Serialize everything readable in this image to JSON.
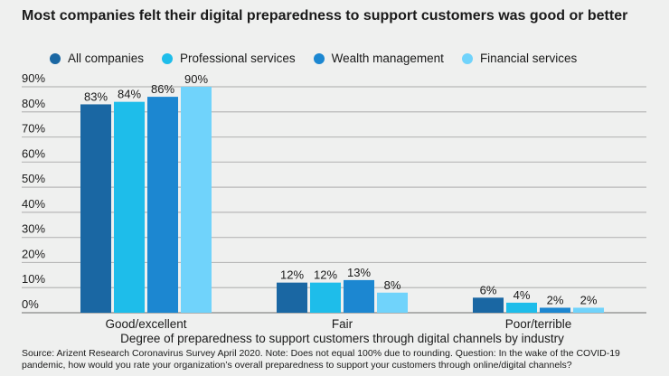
{
  "chart_data": {
    "type": "bar",
    "title": "Most companies felt their digital preparedness to support customers was good or better",
    "xlabel": "Degree of preparedness to support customers through digital channels by industry",
    "ylabel": "",
    "categories": [
      "Good/excellent",
      "Fair",
      "Poor/terrible"
    ],
    "series": [
      {
        "name": "All companies",
        "values": [
          83,
          12,
          6
        ],
        "color": "#1a67a3"
      },
      {
        "name": "Professional services",
        "values": [
          84,
          12,
          4
        ],
        "color": "#1ebdea"
      },
      {
        "name": "Wealth management",
        "values": [
          86,
          13,
          2
        ],
        "color": "#1c87d1"
      },
      {
        "name": "Financial services",
        "values": [
          90,
          8,
          2
        ],
        "color": "#70d3fb"
      }
    ],
    "ylim": [
      0,
      90
    ],
    "yticks": [
      "0%",
      "10%",
      "20%",
      "30%",
      "40%",
      "50%",
      "60%",
      "70%",
      "80%",
      "90%"
    ],
    "grid": true,
    "legend": "top",
    "data_label_suffix": "%"
  },
  "source": "Source: Arizent Research Coronavirus Survey April 2020. Note: Does not equal 100% due to rounding. Question: In the wake of the COVID-19 pandemic, how would you rate your organization’s overall preparedness to support your customers through online/digital channels?"
}
